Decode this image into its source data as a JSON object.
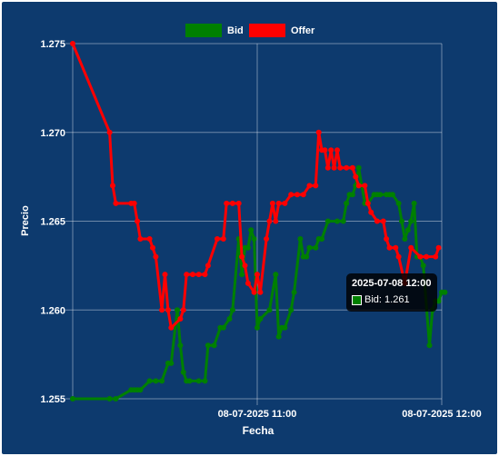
{
  "chart_data": {
    "type": "line",
    "xlabel": "Fecha",
    "ylabel": "Precio",
    "ylim": [
      1.255,
      1.275
    ],
    "yticks": [
      "1.255",
      "1.260",
      "1.265",
      "1.270",
      "1.275"
    ],
    "x_range": [
      "08-07-2025 10:00",
      "08-07-2025 12:00"
    ],
    "x_tick_labels": [
      "08-07-2025 11:00",
      "08-07-2025 12:00"
    ],
    "legend_position": "top",
    "grid": true,
    "series": [
      {
        "name": "Bid",
        "color": "#008000",
        "points": [
          [
            "2025-07-08 10:00",
            1.255
          ],
          [
            "2025-07-08 10:12",
            1.255
          ],
          [
            "2025-07-08 10:14",
            1.255
          ],
          [
            "2025-07-08 10:19",
            1.2555
          ],
          [
            "2025-07-08 10:20",
            1.2555
          ],
          [
            "2025-07-08 10:21",
            1.2555
          ],
          [
            "2025-07-08 10:22",
            1.2555
          ],
          [
            "2025-07-08 10:25",
            1.256
          ],
          [
            "2025-07-08 10:27",
            1.256
          ],
          [
            "2025-07-08 10:29",
            1.256
          ],
          [
            "2025-07-08 10:31",
            1.257
          ],
          [
            "2025-07-08 10:32",
            1.257
          ],
          [
            "2025-07-08 10:34",
            1.26
          ],
          [
            "2025-07-08 10:35",
            1.258
          ],
          [
            "2025-07-08 10:36",
            1.2565
          ],
          [
            "2025-07-08 10:37",
            1.256
          ],
          [
            "2025-07-08 10:38",
            1.256
          ],
          [
            "2025-07-08 10:41",
            1.256
          ],
          [
            "2025-07-08 10:43",
            1.256
          ],
          [
            "2025-07-08 10:44",
            1.258
          ],
          [
            "2025-07-08 10:46",
            1.258
          ],
          [
            "2025-07-08 10:48",
            1.259
          ],
          [
            "2025-07-08 10:49",
            1.259
          ],
          [
            "2025-07-08 10:51",
            1.2595
          ],
          [
            "2025-07-08 10:52",
            1.26
          ],
          [
            "2025-07-08 10:54",
            1.264
          ],
          [
            "2025-07-08 10:55",
            1.262
          ],
          [
            "2025-07-08 10:56",
            1.2635
          ],
          [
            "2025-07-08 10:57",
            1.2635
          ],
          [
            "2025-07-08 10:58",
            1.2645
          ],
          [
            "2025-07-08 10:59",
            1.264
          ],
          [
            "2025-07-08 11:00",
            1.259
          ],
          [
            "2025-07-08 11:01",
            1.2595
          ],
          [
            "2025-07-08 11:04",
            1.26
          ],
          [
            "2025-07-08 11:06",
            1.262
          ],
          [
            "2025-07-08 11:07",
            1.2585
          ],
          [
            "2025-07-08 11:08",
            1.259
          ],
          [
            "2025-07-08 11:09",
            1.259
          ],
          [
            "2025-07-08 11:11",
            1.26
          ],
          [
            "2025-07-08 11:12",
            1.261
          ],
          [
            "2025-07-08 11:14",
            1.264
          ],
          [
            "2025-07-08 11:15",
            1.263
          ],
          [
            "2025-07-08 11:16",
            1.263
          ],
          [
            "2025-07-08 11:17",
            1.2635
          ],
          [
            "2025-07-08 11:19",
            1.2635
          ],
          [
            "2025-07-08 11:20",
            1.264
          ],
          [
            "2025-07-08 11:21",
            1.264
          ],
          [
            "2025-07-08 11:23",
            1.265
          ],
          [
            "2025-07-08 11:26",
            1.265
          ],
          [
            "2025-07-08 11:28",
            1.265
          ],
          [
            "2025-07-08 11:29",
            1.266
          ],
          [
            "2025-07-08 11:30",
            1.2665
          ],
          [
            "2025-07-08 11:31",
            1.2665
          ],
          [
            "2025-07-08 11:32",
            1.267
          ],
          [
            "2025-07-08 11:33",
            1.268
          ],
          [
            "2025-07-08 11:34",
            1.267
          ],
          [
            "2025-07-08 11:35",
            1.266
          ],
          [
            "2025-07-08 11:36",
            1.266
          ],
          [
            "2025-07-08 11:38",
            1.2665
          ],
          [
            "2025-07-08 11:39",
            1.2665
          ],
          [
            "2025-07-08 11:40",
            1.2665
          ],
          [
            "2025-07-08 11:42",
            1.2665
          ],
          [
            "2025-07-08 11:43",
            1.2665
          ],
          [
            "2025-07-08 11:44",
            1.2665
          ],
          [
            "2025-07-08 11:46",
            1.266
          ],
          [
            "2025-07-08 11:47",
            1.265
          ],
          [
            "2025-07-08 11:48",
            1.264
          ],
          [
            "2025-07-08 11:49",
            1.2645
          ],
          [
            "2025-07-08 11:50",
            1.265
          ],
          [
            "2025-07-08 11:51",
            1.266
          ],
          [
            "2025-07-08 11:52",
            1.263
          ],
          [
            "2025-07-08 11:53",
            1.263
          ],
          [
            "2025-07-08 11:54",
            1.2625
          ],
          [
            "2025-07-08 11:56",
            1.258
          ],
          [
            "2025-07-08 11:57",
            1.26
          ],
          [
            "2025-07-08 11:58",
            1.2605
          ],
          [
            "2025-07-08 11:59",
            1.2605
          ],
          [
            "2025-07-08 12:00",
            1.261
          ],
          [
            "2025-07-08 12:01",
            1.261
          ]
        ]
      },
      {
        "name": "Offer",
        "color": "#ff0000",
        "points": [
          [
            "2025-07-08 10:00",
            1.275
          ],
          [
            "2025-07-08 10:12",
            1.27
          ],
          [
            "2025-07-08 10:13",
            1.267
          ],
          [
            "2025-07-08 10:14",
            1.266
          ],
          [
            "2025-07-08 10:19",
            1.266
          ],
          [
            "2025-07-08 10:20",
            1.266
          ],
          [
            "2025-07-08 10:21",
            1.265
          ],
          [
            "2025-07-08 10:22",
            1.264
          ],
          [
            "2025-07-08 10:25",
            1.264
          ],
          [
            "2025-07-08 10:26",
            1.2635
          ],
          [
            "2025-07-08 10:27",
            1.263
          ],
          [
            "2025-07-08 10:29",
            1.26
          ],
          [
            "2025-07-08 10:30",
            1.262
          ],
          [
            "2025-07-08 10:31",
            1.26
          ],
          [
            "2025-07-08 10:32",
            1.259
          ],
          [
            "2025-07-08 10:35",
            1.2595
          ],
          [
            "2025-07-08 10:36",
            1.26
          ],
          [
            "2025-07-08 10:37",
            1.262
          ],
          [
            "2025-07-08 10:39",
            1.262
          ],
          [
            "2025-07-08 10:41",
            1.262
          ],
          [
            "2025-07-08 10:43",
            1.262
          ],
          [
            "2025-07-08 10:44",
            1.2625
          ],
          [
            "2025-07-08 10:47",
            1.264
          ],
          [
            "2025-07-08 10:49",
            1.264
          ],
          [
            "2025-07-08 10:50",
            1.266
          ],
          [
            "2025-07-08 10:52",
            1.266
          ],
          [
            "2025-07-08 10:54",
            1.266
          ],
          [
            "2025-07-08 10:55",
            1.263
          ],
          [
            "2025-07-08 10:56",
            1.2625
          ],
          [
            "2025-07-08 10:57",
            1.2615
          ],
          [
            "2025-07-08 10:59",
            1.261
          ],
          [
            "2025-07-08 11:00",
            1.262
          ],
          [
            "2025-07-08 11:01",
            1.261
          ],
          [
            "2025-07-08 11:03",
            1.264
          ],
          [
            "2025-07-08 11:04",
            1.265
          ],
          [
            "2025-07-08 11:05",
            1.266
          ],
          [
            "2025-07-08 11:06",
            1.265
          ],
          [
            "2025-07-08 11:07",
            1.266
          ],
          [
            "2025-07-08 11:09",
            1.266
          ],
          [
            "2025-07-08 11:11",
            1.2665
          ],
          [
            "2025-07-08 11:13",
            1.2665
          ],
          [
            "2025-07-08 11:15",
            1.2665
          ],
          [
            "2025-07-08 11:17",
            1.267
          ],
          [
            "2025-07-08 11:19",
            1.267
          ],
          [
            "2025-07-08 11:20",
            1.27
          ],
          [
            "2025-07-08 11:21",
            1.269
          ],
          [
            "2025-07-08 11:22",
            1.269
          ],
          [
            "2025-07-08 11:23",
            1.268
          ],
          [
            "2025-07-08 11:24",
            1.269
          ],
          [
            "2025-07-08 11:25",
            1.268
          ],
          [
            "2025-07-08 11:26",
            1.269
          ],
          [
            "2025-07-08 11:27",
            1.268
          ],
          [
            "2025-07-08 11:29",
            1.268
          ],
          [
            "2025-07-08 11:31",
            1.268
          ],
          [
            "2025-07-08 11:32",
            1.2675
          ],
          [
            "2025-07-08 11:33",
            1.267
          ],
          [
            "2025-07-08 11:35",
            1.267
          ],
          [
            "2025-07-08 11:36",
            1.266
          ],
          [
            "2025-07-08 11:37",
            1.2655
          ],
          [
            "2025-07-08 11:39",
            1.265
          ],
          [
            "2025-07-08 11:41",
            1.265
          ],
          [
            "2025-07-08 11:42",
            1.264
          ],
          [
            "2025-07-08 11:43",
            1.2635
          ],
          [
            "2025-07-08 11:45",
            1.2635
          ],
          [
            "2025-07-08 11:46",
            1.263
          ],
          [
            "2025-07-08 11:48",
            1.2615
          ],
          [
            "2025-07-08 11:50",
            1.2635
          ],
          [
            "2025-07-08 11:53",
            1.263
          ],
          [
            "2025-07-08 11:55",
            1.263
          ],
          [
            "2025-07-08 11:58",
            1.263
          ],
          [
            "2025-07-08 11:59",
            1.2635
          ]
        ]
      }
    ]
  },
  "tooltip": {
    "title": "2025-07-08 12:00",
    "series_label": "Bid",
    "value_text": "1.261"
  }
}
